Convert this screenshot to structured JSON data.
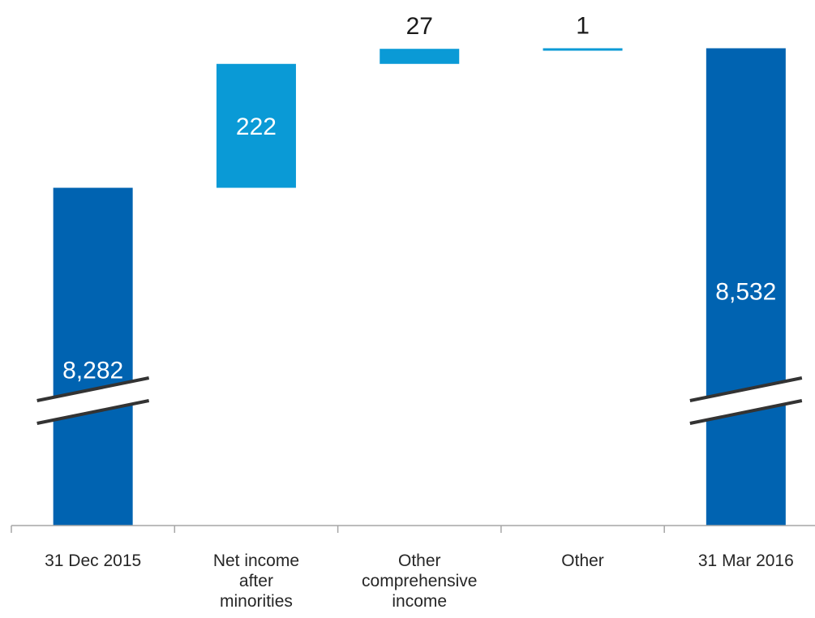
{
  "chart_data": {
    "type": "bar",
    "subtype": "waterfall",
    "title": "",
    "xlabel": "",
    "ylabel": "",
    "ylim": [
      7950,
      8540
    ],
    "axis_break": true,
    "grid": false,
    "categories": [
      [
        "31 Dec 2015"
      ],
      [
        "Net income",
        "after",
        "minorities"
      ],
      [
        "Other",
        "comprehensive",
        "income"
      ],
      [
        "Other"
      ],
      [
        "31 Mar 2016"
      ]
    ],
    "bars": [
      {
        "kind": "total",
        "base": 0,
        "value": 8282,
        "label": "8,282",
        "label_position": "inside"
      },
      {
        "kind": "delta",
        "base": 8282,
        "value": 222,
        "label": "222",
        "label_position": "inside"
      },
      {
        "kind": "delta",
        "base": 8504,
        "value": 27,
        "label": "27",
        "label_position": "above"
      },
      {
        "kind": "delta",
        "base": 8531,
        "value": 1,
        "label": "1",
        "label_position": "above"
      },
      {
        "kind": "total",
        "base": 0,
        "value": 8532,
        "label": "8,532",
        "label_position": "inside"
      }
    ],
    "colors": {
      "total": "#0063B1",
      "delta": "#0A9AD6",
      "axis": "#A6A6A6",
      "label_inside": "#FFFFFF",
      "label_outside": "#1A1A1A",
      "tick_label": "#262626",
      "break_fill": "#FFFFFF",
      "break_line": "#333333"
    }
  }
}
